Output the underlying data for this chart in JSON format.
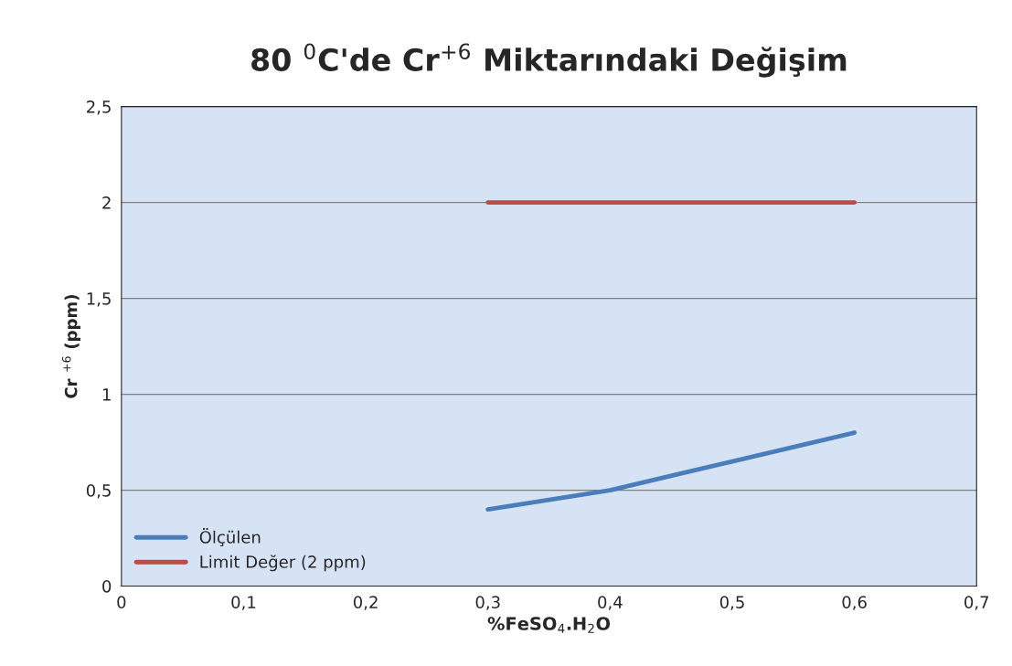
{
  "chart_data": {
    "type": "line",
    "title": "80 $^{0}$C'de Cr$^{+6}$ Miktarındaki Değişim",
    "xlabel": "%FeSO$_{4}$.H$_{2}$O",
    "ylabel": "Cr $^{+6}$ (ppm)",
    "x": [
      0.3,
      0.4,
      0.5,
      0.6
    ],
    "series": [
      {
        "name": "Ölçülen",
        "color": "#4a7ebb",
        "values": [
          0.4,
          0.5,
          0.65,
          0.8
        ]
      },
      {
        "name": "Limit Değer (2 ppm)",
        "color": "#be4b48",
        "values": [
          2,
          2,
          2,
          2
        ]
      }
    ],
    "xlim": [
      0,
      0.7
    ],
    "xticks": [
      0,
      {
        "value": 0.1,
        "label": "0,1"
      },
      {
        "value": 0.2,
        "label": "0,2"
      },
      {
        "value": 0.3,
        "label": "0,3"
      },
      {
        "value": 0.4,
        "label": "0,4"
      },
      {
        "value": 0.5,
        "label": "0,5"
      },
      {
        "value": 0.6,
        "label": "0,6"
      },
      {
        "value": 0.7,
        "label": "0,7"
      }
    ],
    "ylim": [
      0,
      2.5
    ],
    "yticks": [
      0,
      {
        "value": 0.5,
        "label": "0,5"
      },
      1,
      {
        "value": 1.5,
        "label": "1,5"
      },
      2,
      {
        "value": 2.5,
        "label": "2,5"
      }
    ],
    "grid": "y",
    "legend": "bottom left",
    "marker": "none",
    "line_style": "solid"
  }
}
